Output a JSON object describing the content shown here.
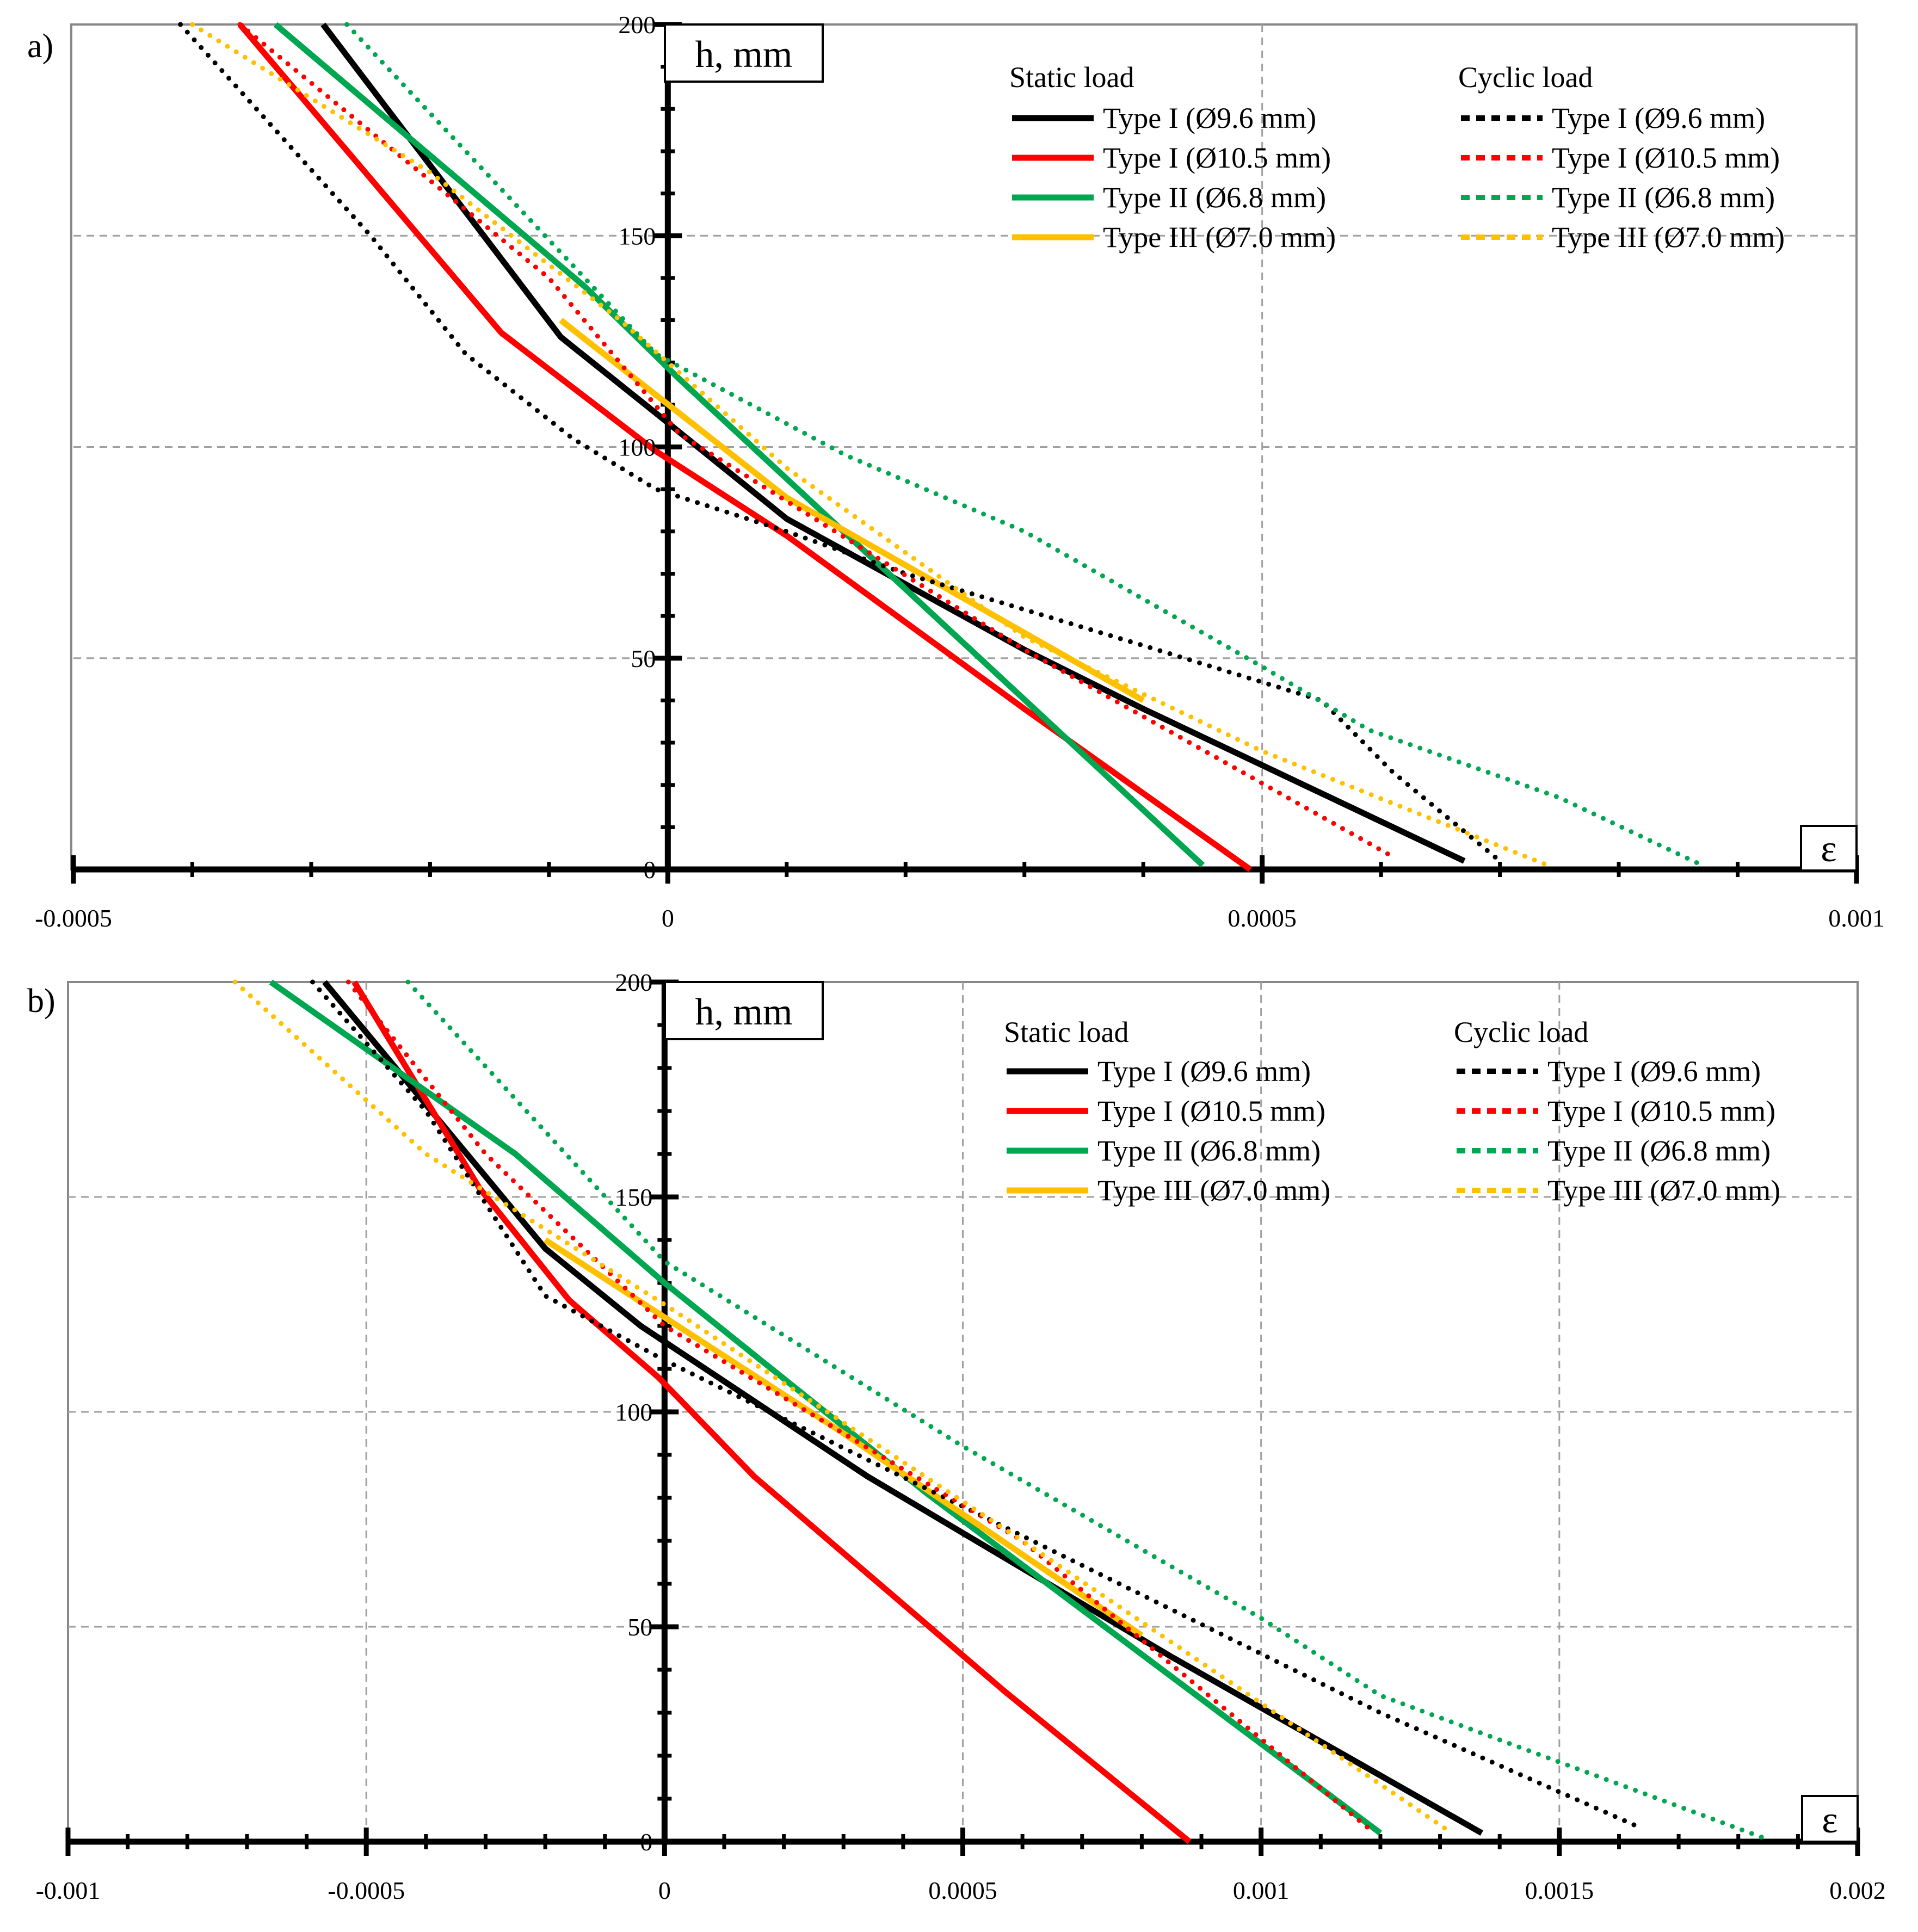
{
  "chart_data": [
    {
      "type": "line",
      "panel_label": "a)",
      "ylabel": "h, mm",
      "xlabel": "ε",
      "xlim": [
        -0.0005,
        0.001
      ],
      "ylim": [
        0,
        200
      ],
      "x_ticks": [
        -0.0005,
        0,
        0.0005,
        0.001
      ],
      "x_tick_labels": [
        "-0.0005",
        "0",
        "0.0005",
        "0.001"
      ],
      "y_ticks": [
        0,
        50,
        100,
        150,
        200
      ],
      "y_tick_labels": [
        "0",
        "50",
        "100",
        "150",
        "200"
      ],
      "grid": true,
      "legend": {
        "position": "top-right",
        "groups": [
          {
            "title": "Static load",
            "entries": [
              "Type I (Ø9.6 mm)",
              "Type I (Ø10.5 mm)",
              "Type II (Ø6.8 mm)",
              "Type III (Ø7.0 mm)"
            ]
          },
          {
            "title": "Cyclic load",
            "entries": [
              "Type I (Ø9.6 mm)",
              "Type I (Ø10.5 mm)",
              "Type II (Ø6.8 mm)",
              "Type III (Ø7.0 mm)"
            ]
          }
        ]
      },
      "series": [
        {
          "name": "Static Type I (Ø9.6 mm)",
          "color": "#000000",
          "style": "solid",
          "points": [
            [
              -0.00029,
              200
            ],
            [
              -9e-05,
              126
            ],
            [
              -1e-05,
              108
            ],
            [
              0.0001,
              83
            ],
            [
              0.0003,
              52
            ],
            [
              0.0004,
              38
            ],
            [
              0.00067,
              2
            ]
          ]
        },
        {
          "name": "Static Type I (Ø10.5 mm)",
          "color": "#ff0000",
          "style": "solid",
          "points": [
            [
              -0.00036,
              200
            ],
            [
              -0.00014,
              127
            ],
            [
              -1e-05,
              99
            ],
            [
              0.0001,
              79
            ],
            [
              0.0003,
              38
            ],
            [
              0.00049,
              0
            ]
          ]
        },
        {
          "name": "Static Type II (Ø6.8 mm)",
          "color": "#00a650",
          "style": "solid",
          "points": [
            [
              -0.00033,
              200
            ],
            [
              -7e-05,
              138
            ],
            [
              1e-05,
              116
            ],
            [
              0.00045,
              1
            ]
          ]
        },
        {
          "name": "Static Type III (Ø7.0 mm)",
          "color": "#ffc000",
          "style": "solid",
          "points": [
            [
              -9e-05,
              130
            ],
            [
              0.0001,
              88
            ],
            [
              0.0004,
              40
            ]
          ]
        },
        {
          "name": "Cyclic Type I (Ø9.6 mm)",
          "color": "#000000",
          "style": "dotted",
          "points": [
            [
              -0.00041,
              200
            ],
            [
              -0.00025,
              150
            ],
            [
              -0.00017,
              122
            ],
            [
              -8e-05,
              102
            ],
            [
              -1e-05,
              90
            ],
            [
              0.0001,
              80
            ],
            [
              0.0002,
              70
            ],
            [
              0.0004,
              53
            ],
            [
              0.00055,
              40
            ],
            [
              0.00061,
              23
            ],
            [
              0.0007,
              2
            ]
          ]
        },
        {
          "name": "Cyclic Type I (Ø10.5 mm)",
          "color": "#ff0000",
          "style": "dotted",
          "points": [
            [
              -0.00036,
              200
            ],
            [
              -0.0001,
              140
            ],
            [
              1e-05,
              103
            ],
            [
              0.0003,
              52
            ],
            [
              0.00061,
              3
            ]
          ]
        },
        {
          "name": "Cyclic Type II (Ø6.8 mm)",
          "color": "#00a650",
          "style": "dotted",
          "points": [
            [
              -0.00027,
              200
            ],
            [
              -1e-05,
              122
            ],
            [
              0.00015,
              98
            ],
            [
              0.0003,
              80
            ],
            [
              0.0005,
              48
            ],
            [
              0.00059,
              33
            ],
            [
              0.00075,
              17
            ],
            [
              0.00087,
              1
            ]
          ]
        },
        {
          "name": "Cyclic Type III (Ø7.0 mm)",
          "color": "#ffc000",
          "style": "dotted",
          "points": [
            [
              -0.0004,
              200
            ],
            [
              -0.0002,
              165
            ],
            [
              -4e-05,
              130
            ],
            [
              0.0001,
              95
            ],
            [
              0.0003,
              55
            ],
            [
              0.0005,
              28
            ],
            [
              0.00074,
              1
            ]
          ]
        }
      ]
    },
    {
      "type": "line",
      "panel_label": "b)",
      "ylabel": "h, mm",
      "xlabel": "ε",
      "xlim": [
        -0.001,
        0.002
      ],
      "ylim": [
        0,
        200
      ],
      "x_ticks": [
        -0.001,
        -0.0005,
        0,
        0.0005,
        0.001,
        0.0015,
        0.002
      ],
      "x_tick_labels": [
        "-0.001",
        "-0.0005",
        "0",
        "0.0005",
        "0.001",
        "0.0015",
        "0.002"
      ],
      "y_ticks": [
        0,
        50,
        100,
        150,
        200
      ],
      "y_tick_labels": [
        "0",
        "50",
        "100",
        "150",
        "200"
      ],
      "grid": true,
      "legend": {
        "position": "top-right",
        "groups": [
          {
            "title": "Static load",
            "entries": [
              "Type I (Ø9.6 mm)",
              "Type I (Ø10.5 mm)",
              "Type II (Ø6.8 mm)",
              "Type III (Ø7.0 mm)"
            ]
          },
          {
            "title": "Cyclic load",
            "entries": [
              "Type I (Ø9.6 mm)",
              "Type I (Ø10.5 mm)",
              "Type II (Ø6.8 mm)",
              "Type III (Ø7.0 mm)"
            ]
          }
        ]
      },
      "series": [
        {
          "name": "Static Type I (Ø9.6 mm)",
          "color": "#000000",
          "style": "solid",
          "points": [
            [
              -0.00057,
              200
            ],
            [
              -0.0002,
              138
            ],
            [
              -4e-05,
              120
            ],
            [
              0.00034,
              85
            ],
            [
              0.00085,
              43
            ],
            [
              0.00137,
              2
            ]
          ]
        },
        {
          "name": "Static Type I (Ø10.5 mm)",
          "color": "#ff0000",
          "style": "solid",
          "points": [
            [
              -0.00052,
              200
            ],
            [
              -0.00031,
              152
            ],
            [
              -0.00016,
              126
            ],
            [
              -1e-05,
              108
            ],
            [
              0.00015,
              85
            ],
            [
              0.00057,
              35
            ],
            [
              0.00088,
              0
            ]
          ]
        },
        {
          "name": "Static Type II (Ø6.8 mm)",
          "color": "#00a650",
          "style": "solid",
          "points": [
            [
              -0.00066,
              200
            ],
            [
              -0.00025,
              160
            ],
            [
              0,
              130
            ],
            [
              0.00044,
              81
            ],
            [
              0.0012,
              2
            ]
          ]
        },
        {
          "name": "Static Type III (Ø7.0 mm)",
          "color": "#ffc000",
          "style": "solid",
          "points": [
            [
              -0.0002,
              140
            ],
            [
              0.0003,
              95
            ],
            [
              0.0008,
              48
            ]
          ]
        },
        {
          "name": "Cyclic Type I (Ø9.6 mm)",
          "color": "#000000",
          "style": "dotted",
          "points": [
            [
              -0.00059,
              200
            ],
            [
              -0.0004,
              170
            ],
            [
              -0.0002,
              127
            ],
            [
              0,
              112
            ],
            [
              0.0005,
              78
            ],
            [
              0.0012,
              30
            ],
            [
              0.00164,
              3
            ]
          ]
        },
        {
          "name": "Cyclic Type I (Ø10.5 mm)",
          "color": "#ff0000",
          "style": "dotted",
          "points": [
            [
              -0.00053,
              200
            ],
            [
              -0.0003,
              160
            ],
            [
              0,
              120
            ],
            [
              0.0006,
              70
            ],
            [
              0.00119,
              2
            ]
          ]
        },
        {
          "name": "Cyclic Type II (Ø6.8 mm)",
          "color": "#00a650",
          "style": "dotted",
          "points": [
            [
              -0.00043,
              200
            ],
            [
              0,
              135
            ],
            [
              0.0005,
              92
            ],
            [
              0.001,
              52
            ],
            [
              0.0012,
              34
            ],
            [
              0.00184,
              1
            ]
          ]
        },
        {
          "name": "Cyclic Type III (Ø7.0 mm)",
          "color": "#ffc000",
          "style": "dotted",
          "points": [
            [
              -0.00072,
              200
            ],
            [
              -0.0004,
              160
            ],
            [
              0,
              125
            ],
            [
              0.0006,
              70
            ],
            [
              0.00132,
              2
            ]
          ]
        }
      ]
    }
  ]
}
